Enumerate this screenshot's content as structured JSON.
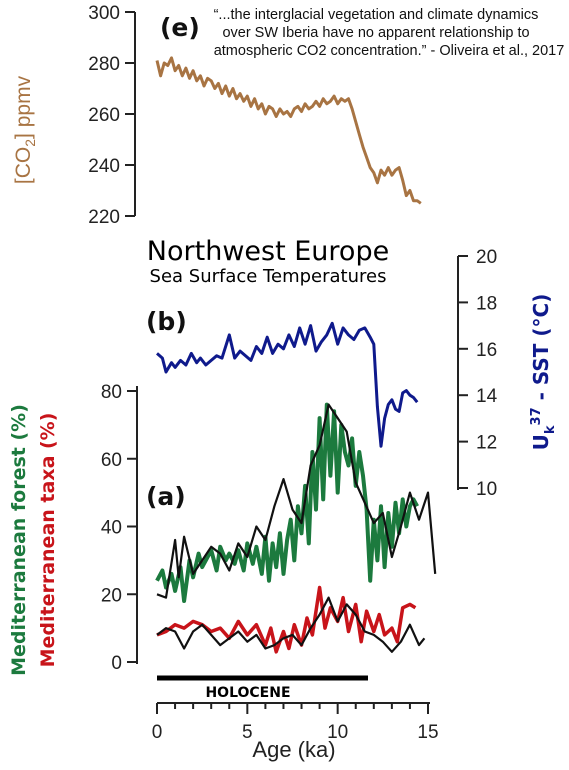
{
  "quote": {
    "lines": [
      "“...the interglacial vegetation and climate dynamics",
      "over SW Iberia have no apparent relationship to",
      "atmospheric CO2 concentration.” - Oliveira et al., 2017"
    ]
  },
  "titles": {
    "main": "Northwest Europe",
    "sub": "Sea Surface Temperatures"
  },
  "panel_labels": {
    "e": "(e)",
    "b": "(b)",
    "a": "(a)"
  },
  "axis_labels": {
    "co2": "[CO2] ppmv",
    "sst": "Uk37 - SST (°C)",
    "forest": "Mediterranean forest (%)",
    "taxa": "Mediterranean taxa (%)",
    "age": "Age (ka)"
  },
  "holocene_label": "HOLOCENE",
  "colors": {
    "co2": "#a87443",
    "sst": "#0f1a8c",
    "forest": "#1c7a3e",
    "taxa": "#c8141a",
    "black": "#111111"
  },
  "chart_data": [
    {
      "type": "line",
      "panel": "(e)",
      "ylabel": "[CO2] ppmv",
      "ylim": [
        220,
        300
      ],
      "yticks": [
        220,
        240,
        260,
        280,
        300
      ],
      "xlim": [
        0,
        15
      ],
      "series": [
        {
          "color": "#a87443",
          "x": [
            0.0,
            0.2,
            0.4,
            0.6,
            0.8,
            1.0,
            1.2,
            1.4,
            1.6,
            1.8,
            2.0,
            2.2,
            2.4,
            2.6,
            2.8,
            3.0,
            3.2,
            3.4,
            3.6,
            3.8,
            4.0,
            4.2,
            4.4,
            4.6,
            4.8,
            5.0,
            5.2,
            5.4,
            5.6,
            5.8,
            6.0,
            6.2,
            6.4,
            6.6,
            6.8,
            7.0,
            7.2,
            7.4,
            7.6,
            7.8,
            8.0,
            8.2,
            8.4,
            8.6,
            8.8,
            9.0,
            9.2,
            9.4,
            9.6,
            9.8,
            10.0,
            10.2,
            10.4,
            10.6,
            10.8,
            11.0,
            11.2,
            11.4,
            11.6,
            11.8,
            12.0,
            12.2,
            12.4,
            12.6,
            12.8,
            13.0,
            13.2,
            13.4,
            13.6,
            13.8,
            14.0,
            14.2,
            14.4,
            14.6
          ],
          "y": [
            281,
            275,
            280,
            279,
            282,
            277,
            279,
            275,
            278,
            274,
            277,
            273,
            275,
            271,
            274,
            273,
            270,
            272,
            268,
            271,
            267,
            270,
            266,
            268,
            265,
            267,
            263,
            266,
            262,
            264,
            260,
            263,
            262,
            259,
            262,
            260,
            261,
            259,
            262,
            263,
            261,
            264,
            262,
            263,
            265,
            263,
            266,
            264,
            265,
            267,
            264,
            266,
            265,
            266,
            262,
            257,
            252,
            247,
            243,
            239,
            237,
            233,
            238,
            236,
            239,
            236,
            238,
            239,
            234,
            228,
            230,
            226,
            226,
            225
          ]
        }
      ]
    },
    {
      "type": "line",
      "panel": "(b)",
      "ylabel": "Uk37 - SST (°C)",
      "ylim": [
        10,
        20
      ],
      "yticks": [
        10,
        12,
        14,
        16,
        18,
        20
      ],
      "xlim": [
        0,
        15
      ],
      "series": [
        {
          "color": "#0f1a8c",
          "x": [
            0,
            0.3,
            0.5,
            0.8,
            1.0,
            1.3,
            1.6,
            1.9,
            2.2,
            2.4,
            2.7,
            3.0,
            3.3,
            3.6,
            4.0,
            4.3,
            4.6,
            4.9,
            5.2,
            5.5,
            5.8,
            6.1,
            6.4,
            6.7,
            7.0,
            7.3,
            7.6,
            7.9,
            8.2,
            8.5,
            8.8,
            9.1,
            9.4,
            9.7,
            10.0,
            10.3,
            10.6,
            10.9,
            11.2,
            11.5,
            11.8,
            12.0,
            12.2,
            12.4,
            12.6,
            12.8,
            13.0,
            13.2,
            13.4,
            13.6,
            13.8,
            14.0,
            14.2,
            14.4
          ],
          "y": [
            15.8,
            15.6,
            15.0,
            15.4,
            15.2,
            15.5,
            15.3,
            15.8,
            15.4,
            15.6,
            15.3,
            15.5,
            15.7,
            15.6,
            16.6,
            15.6,
            15.9,
            15.7,
            15.5,
            16.1,
            15.8,
            16.5,
            15.8,
            16.2,
            16.0,
            16.6,
            16.1,
            16.9,
            16.2,
            17.0,
            15.9,
            16.3,
            16.6,
            17.1,
            16.2,
            16.9,
            16.6,
            16.4,
            16.8,
            16.9,
            16.5,
            16.2,
            13.5,
            11.8,
            13.0,
            13.6,
            13.8,
            13.4,
            13.3,
            14.1,
            14.2,
            14.0,
            13.9,
            13.7
          ]
        }
      ]
    },
    {
      "type": "line",
      "panel": "(a)",
      "ylabel": "Mediterranean forest (%) / Mediterranean taxa (%)",
      "xlabel": "Age (ka)",
      "ylim": [
        0,
        80
      ],
      "yticks": [
        0,
        20,
        40,
        60,
        80
      ],
      "xlim": [
        0,
        15
      ],
      "xticks": [
        0,
        5,
        10,
        15
      ],
      "series": [
        {
          "color": "#1c7a3e",
          "x": [
            0,
            0.3,
            0.5,
            0.8,
            1.0,
            1.3,
            1.5,
            1.8,
            2.0,
            2.3,
            2.5,
            2.8,
            3.0,
            3.3,
            3.5,
            3.8,
            4.0,
            4.3,
            4.5,
            4.8,
            5.0,
            5.3,
            5.5,
            5.8,
            6.0,
            6.2,
            6.4,
            6.6,
            6.8,
            7.0,
            7.2,
            7.4,
            7.6,
            7.8,
            8.0,
            8.2,
            8.4,
            8.6,
            8.8,
            9.0,
            9.2,
            9.4,
            9.6,
            9.8,
            10.0,
            10.2,
            10.4,
            10.6,
            10.8,
            11.0,
            11.2,
            11.4,
            11.6,
            11.8,
            12.0,
            12.2,
            12.4,
            12.6,
            12.8,
            13.0,
            13.2,
            13.4,
            13.6,
            13.8,
            14.0,
            14.2,
            14.4
          ],
          "y": [
            24,
            27,
            22,
            26,
            21,
            28,
            18,
            30,
            25,
            32,
            28,
            31,
            33,
            27,
            34,
            30,
            32,
            29,
            33,
            27,
            35,
            29,
            34,
            26,
            37,
            24,
            35,
            28,
            38,
            26,
            36,
            42,
            30,
            46,
            38,
            52,
            35,
            62,
            45,
            72,
            48,
            76,
            55,
            74,
            50,
            70,
            62,
            58,
            66,
            52,
            62,
            55,
            45,
            24,
            42,
            30,
            46,
            28,
            44,
            34,
            47,
            38,
            48,
            40,
            46,
            48,
            46
          ]
        },
        {
          "color": "#111111",
          "x": [
            0,
            0.5,
            1.0,
            1.2,
            1.5,
            2.0,
            2.5,
            3.0,
            3.5,
            4.0,
            4.5,
            5.0,
            5.5,
            6.0,
            6.5,
            7.0,
            7.5,
            8.0,
            8.5,
            9.0,
            9.5,
            10.0,
            10.5,
            11.0,
            11.5,
            12.0,
            12.5,
            13.0,
            13.5,
            14.0,
            14.5,
            15.0,
            15.4
          ],
          "y": [
            20,
            19,
            36,
            25,
            37,
            26,
            30,
            34,
            32,
            27,
            35,
            31,
            40,
            36,
            46,
            54,
            45,
            41,
            58,
            64,
            76,
            72,
            68,
            53,
            47,
            41,
            44,
            31,
            40,
            50,
            42,
            50,
            26
          ]
        },
        {
          "color": "#c8141a",
          "x": [
            0,
            0.5,
            1.0,
            1.5,
            2.0,
            2.5,
            3.0,
            3.5,
            4.0,
            4.5,
            5.0,
            5.5,
            6.0,
            6.3,
            6.6,
            7.0,
            7.3,
            7.6,
            8.0,
            8.3,
            8.6,
            9.0,
            9.3,
            9.6,
            10.0,
            10.3,
            10.6,
            11.0,
            11.3,
            11.6,
            12.0,
            12.3,
            12.6,
            13.0,
            13.3,
            13.6,
            14.0,
            14.3
          ],
          "y": [
            8,
            9,
            11,
            10,
            12,
            11,
            9,
            10,
            7,
            12,
            8,
            11,
            5,
            10,
            3,
            9,
            4,
            11,
            5,
            13,
            8,
            22,
            10,
            16,
            12,
            19,
            9,
            17,
            6,
            15,
            9,
            14,
            8,
            10,
            6,
            16,
            17,
            16
          ]
        },
        {
          "color": "#111111",
          "x": [
            0,
            0.5,
            1.0,
            1.5,
            2.0,
            2.5,
            3.0,
            3.5,
            4.0,
            4.5,
            5.0,
            5.5,
            6.0,
            6.5,
            7.0,
            7.5,
            8.0,
            8.5,
            9.0,
            9.5,
            10.0,
            10.5,
            11.0,
            11.5,
            12.0,
            12.5,
            13.0,
            13.5,
            14.0,
            14.5,
            14.8
          ],
          "y": [
            8,
            10,
            9,
            4,
            9,
            11,
            8,
            5,
            7,
            9,
            6,
            8,
            4,
            5,
            7,
            8,
            5,
            10,
            14,
            19,
            12,
            17,
            14,
            9,
            8,
            6,
            3,
            6,
            11,
            5,
            7
          ]
        }
      ]
    }
  ]
}
